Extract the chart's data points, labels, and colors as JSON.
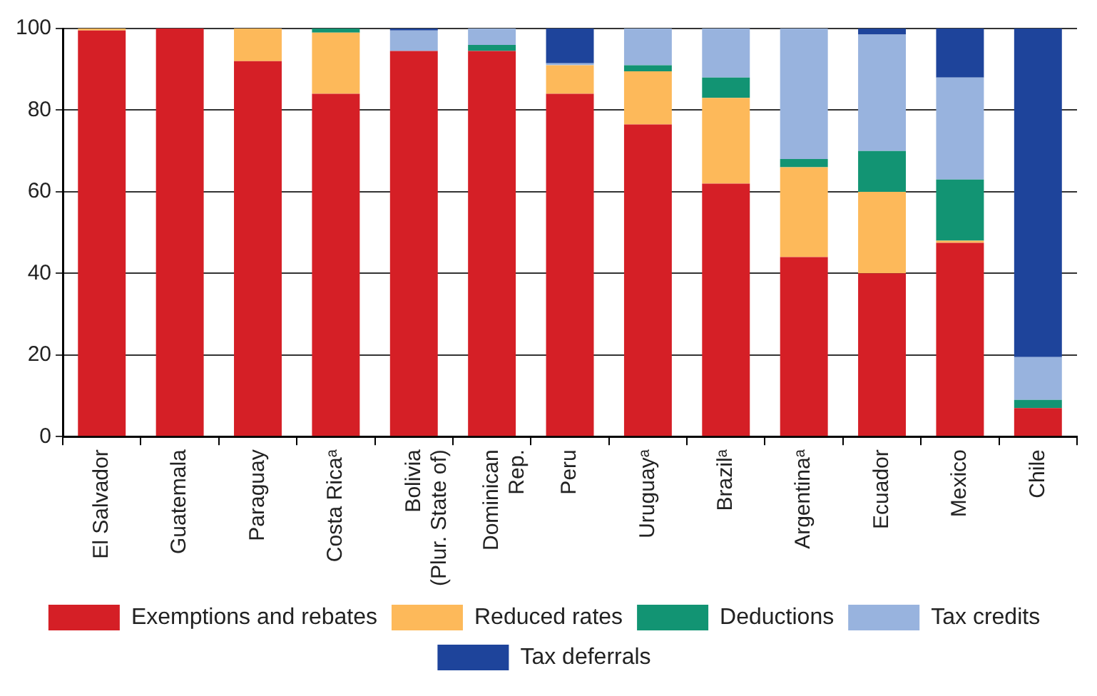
{
  "chart_data": {
    "type": "bar",
    "stacked": true,
    "categories": [
      "El Salvador",
      "Guatemala",
      "Paraguay",
      "Costa Ricaᵃ",
      "Bolivia\n(Plur. State of)",
      "Dominican\nRep.",
      "Peru",
      "Uruguayᵃ",
      "Brazilᵃ",
      "Argentinaᵃ",
      "Ecuador",
      "Mexico",
      "Chile"
    ],
    "series": [
      {
        "name": "Exemptions and rebates",
        "color": "#d51f26",
        "values": [
          99.5,
          100,
          92,
          84,
          94.5,
          94.5,
          84,
          76.5,
          62,
          44,
          40,
          47.5,
          7
        ]
      },
      {
        "name": "Reduced rates",
        "color": "#fdb95a",
        "values": [
          0.5,
          0,
          8,
          15,
          0,
          0,
          7,
          13,
          21,
          22,
          20,
          0.5,
          0
        ]
      },
      {
        "name": "Deductions",
        "color": "#129473",
        "values": [
          0,
          0,
          0,
          1,
          0,
          1.5,
          0,
          1.5,
          5,
          2,
          10,
          15,
          2
        ]
      },
      {
        "name": "Tax credits",
        "color": "#98b3de",
        "values": [
          0,
          0,
          0,
          0,
          5,
          4,
          0.5,
          9,
          12,
          32,
          28.5,
          25,
          10.5
        ]
      },
      {
        "name": "Tax deferrals",
        "color": "#1e449b",
        "values": [
          0,
          0,
          0,
          0,
          0.5,
          0,
          8.5,
          0,
          0,
          0,
          1.5,
          12,
          80.5
        ]
      }
    ],
    "ylim": [
      0,
      100
    ],
    "yticks": [
      0,
      20,
      40,
      60,
      80,
      100
    ],
    "grid": "y",
    "legend": "bottom"
  }
}
